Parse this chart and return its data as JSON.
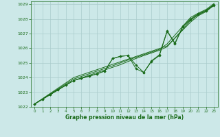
{
  "title": "Graphe pression niveau de la mer (hPa)",
  "background_color": "#cce8e8",
  "grid_color": "#aacccc",
  "line_color": "#1a6b1a",
  "xlim": [
    -0.5,
    23.5
  ],
  "ylim": [
    1022,
    1029.2
  ],
  "xticks": [
    0,
    1,
    2,
    3,
    4,
    5,
    6,
    7,
    8,
    9,
    10,
    11,
    12,
    13,
    14,
    15,
    16,
    17,
    18,
    19,
    20,
    21,
    22,
    23
  ],
  "yticks": [
    1022,
    1023,
    1024,
    1025,
    1026,
    1027,
    1028,
    1029
  ],
  "hours": [
    0,
    1,
    2,
    3,
    4,
    5,
    6,
    7,
    8,
    9,
    10,
    11,
    12,
    13,
    14,
    15,
    16,
    17,
    18,
    19,
    20,
    21,
    22,
    23
  ],
  "line_straight1": [
    1022.2,
    1022.56,
    1022.92,
    1023.28,
    1023.64,
    1024.0,
    1024.18,
    1024.36,
    1024.54,
    1024.72,
    1024.9,
    1025.08,
    1025.26,
    1025.44,
    1025.62,
    1025.8,
    1025.98,
    1026.16,
    1026.7,
    1027.24,
    1027.78,
    1028.22,
    1028.5,
    1028.95
  ],
  "line_straight2": [
    1022.2,
    1022.54,
    1022.88,
    1023.22,
    1023.56,
    1023.9,
    1024.08,
    1024.26,
    1024.44,
    1024.62,
    1024.8,
    1025.0,
    1025.2,
    1025.38,
    1025.56,
    1025.74,
    1025.92,
    1026.3,
    1026.9,
    1027.5,
    1028.1,
    1028.4,
    1028.65,
    1029.05
  ],
  "line_straight3": [
    1022.2,
    1022.52,
    1022.84,
    1023.16,
    1023.48,
    1023.8,
    1023.98,
    1024.16,
    1024.34,
    1024.52,
    1024.7,
    1024.88,
    1025.1,
    1025.3,
    1025.5,
    1025.68,
    1025.86,
    1026.1,
    1026.7,
    1027.3,
    1027.9,
    1028.3,
    1028.55,
    1029.0
  ],
  "line_dip": [
    1022.2,
    1022.52,
    1022.84,
    1023.16,
    1023.48,
    1023.8,
    1023.95,
    1024.1,
    1024.25,
    1024.45,
    1025.3,
    1025.45,
    1025.5,
    1024.85,
    1024.35,
    1025.15,
    1025.55,
    1027.2,
    1026.35,
    1027.5,
    1028.0,
    1028.35,
    1028.6,
    1028.95
  ],
  "line_dip2": [
    1022.2,
    1022.52,
    1022.84,
    1023.16,
    1023.48,
    1023.8,
    1023.95,
    1024.1,
    1024.25,
    1024.45,
    1025.3,
    1025.45,
    1025.5,
    1024.6,
    1024.35,
    1025.1,
    1025.5,
    1027.15,
    1026.3,
    1027.45,
    1027.95,
    1028.3,
    1028.55,
    1028.9
  ]
}
